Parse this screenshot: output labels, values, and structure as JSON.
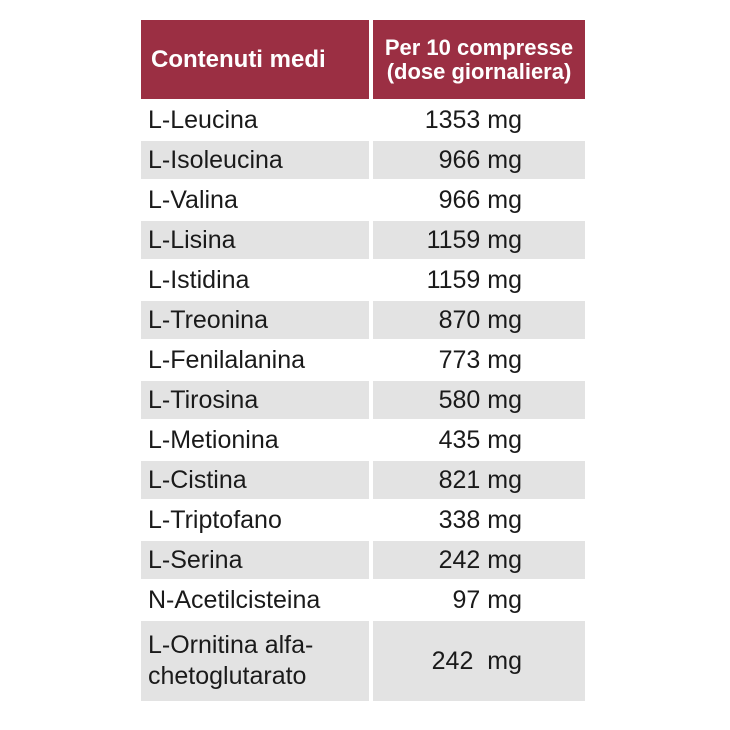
{
  "table": {
    "header": {
      "col1": "Contenuti medi",
      "col2_line1": "Per 10 compresse",
      "col2_line2": "(dose giornaliera)"
    },
    "rows": [
      {
        "name": "L-Leucina",
        "amount": "1353 mg"
      },
      {
        "name": "L-Isoleucina",
        "amount": "966 mg"
      },
      {
        "name": "L-Valina",
        "amount": "966 mg"
      },
      {
        "name": "L-Lisina",
        "amount": "1159 mg"
      },
      {
        "name": "L-Istidina",
        "amount": "1159 mg"
      },
      {
        "name": "L-Treonina",
        "amount": "870 mg"
      },
      {
        "name": "L-Fenilalanina",
        "amount": "773 mg"
      },
      {
        "name": "L-Tirosina",
        "amount": "580 mg"
      },
      {
        "name": "L-Metionina",
        "amount": "435 mg"
      },
      {
        "name": "L-Cistina",
        "amount": "821 mg"
      },
      {
        "name": "L-Triptofano",
        "amount": "338 mg"
      },
      {
        "name": "L-Serina",
        "amount": "242 mg"
      },
      {
        "name": "N-Acetilcisteina",
        "amount": "97 mg"
      },
      {
        "name_line1": "L-Ornitina alfa-",
        "name_line2": "chetoglutarato",
        "amount": "242  mg"
      }
    ]
  },
  "colors": {
    "header_bg": "#9b2f43",
    "header_text": "#ffffff",
    "row_shade": "#e3e3e3"
  }
}
